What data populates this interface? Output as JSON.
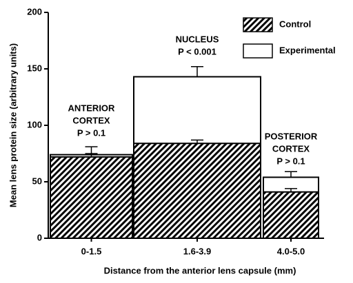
{
  "chart_data": {
    "type": "bar",
    "x_label": "Distance from the anterior lens capsule (mm)",
    "y_label": "Mean lens protein size (arbitrary units)",
    "categories": [
      "0-1.5",
      "1.6-3.9",
      "4.0-5.0"
    ],
    "series": [
      {
        "name": "Experimental",
        "color": "#ffffff",
        "values": [
          74,
          143,
          54
        ],
        "errors": [
          7,
          9,
          5
        ]
      },
      {
        "name": "Control",
        "color": "hatch",
        "values": [
          72,
          84,
          41
        ],
        "errors": [
          3,
          3,
          3
        ]
      }
    ],
    "ylim": [
      0,
      200
    ],
    "yticks": [
      0,
      50,
      100,
      150,
      200
    ],
    "legend": "upper right",
    "annotations": [
      {
        "lines": [
          "ANTERIOR",
          "CORTEX",
          "P > 0.1"
        ]
      },
      {
        "lines": [
          "NUCLEUS",
          "P < 0.001"
        ]
      },
      {
        "lines": [
          "POSTERIOR",
          "CORTEX",
          "P > 0.1"
        ]
      }
    ]
  }
}
